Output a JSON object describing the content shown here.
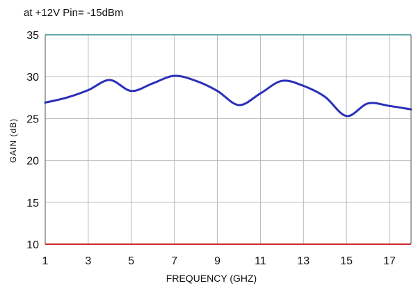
{
  "chart_data": {
    "type": "line",
    "subtitle": "at +12V Pin= -15dBm",
    "xlabel": "FREQUENCY (GHZ)",
    "ylabel": "GAIN (dB)",
    "xlim": [
      1,
      18
    ],
    "ylim": [
      10,
      35
    ],
    "x_ticks": [
      "1",
      "3",
      "5",
      "7",
      "9",
      "11",
      "13",
      "15",
      "17"
    ],
    "y_ticks": [
      "10",
      "15",
      "20",
      "25",
      "30",
      "35"
    ],
    "grid": true,
    "series": [
      {
        "color": "#2b2fb8",
        "x": [
          1,
          2,
          3,
          4,
          5,
          6,
          7,
          8,
          9,
          10,
          11,
          12,
          13,
          14,
          15,
          16,
          17,
          18
        ],
        "y": [
          26.9,
          27.5,
          28.4,
          29.6,
          28.3,
          29.2,
          30.1,
          29.5,
          28.3,
          26.6,
          28.0,
          29.5,
          28.9,
          27.6,
          25.3,
          26.8,
          26.5,
          26.1
        ]
      }
    ],
    "colors": {
      "line": "#2b2fb8",
      "grid": "#b8b8b8",
      "top_border": "#2e8b8b",
      "bottom_border": "#cc2a2a",
      "frame": "#8a8a8a"
    }
  }
}
